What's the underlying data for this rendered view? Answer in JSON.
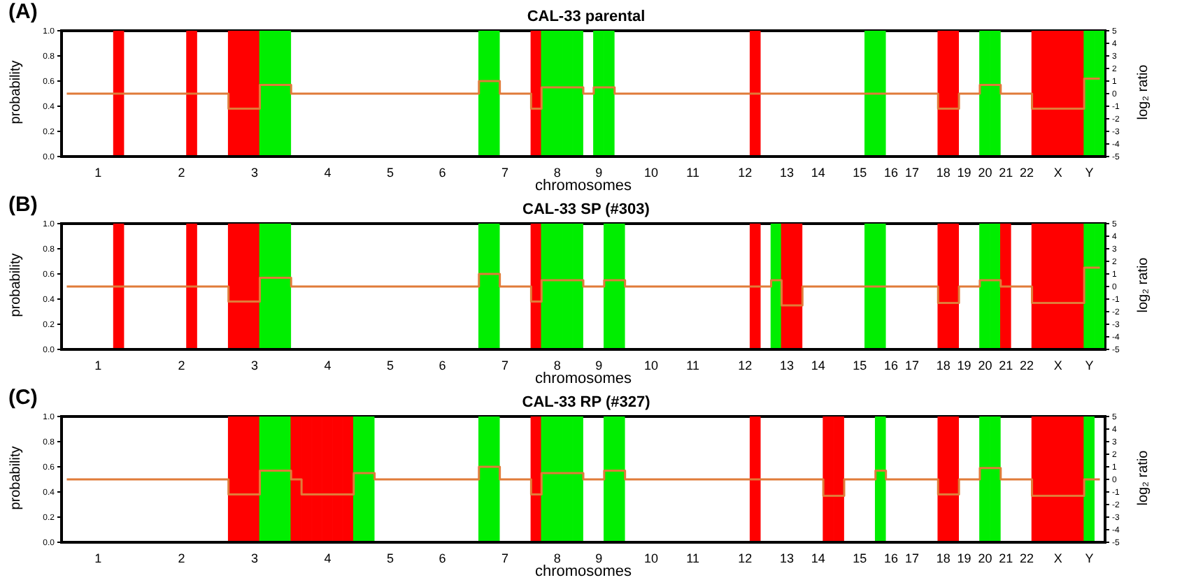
{
  "chart_data": [
    {
      "type": "bar",
      "title": "CAL-33 parental",
      "annotations": [
        "(A)"
      ],
      "xlabel": "chromosomes",
      "ylabel": "probability",
      "y2label": "log₂ ratio",
      "marker": "none",
      "grid": false,
      "categories": [
        null,
        null,
        null,
        "1",
        null,
        null,
        null,
        null,
        null,
        null,
        null,
        "2",
        null,
        null,
        null,
        null,
        null,
        null,
        "3",
        null,
        null,
        null,
        null,
        null,
        null,
        "4",
        null,
        null,
        null,
        null,
        null,
        "5",
        null,
        null,
        null,
        null,
        "6",
        null,
        null,
        null,
        null,
        null,
        "7",
        null,
        null,
        null,
        null,
        "8",
        null,
        null,
        null,
        "9",
        null,
        null,
        null,
        null,
        "10",
        null,
        null,
        null,
        "11",
        null,
        null,
        null,
        null,
        "12",
        null,
        null,
        null,
        "13",
        null,
        null,
        "14",
        null,
        null,
        null,
        "15",
        null,
        null,
        "16",
        null,
        "17",
        null,
        null,
        "18",
        null,
        "19",
        null,
        "20",
        null,
        "21",
        null,
        "22",
        null,
        null,
        "X",
        null,
        null,
        "Y",
        null
      ],
      "ylim": [
        0,
        1
      ],
      "yticks": [
        {
          "value": 0,
          "label": "0.0"
        },
        {
          "value": 0.2,
          "label": "0.2"
        },
        {
          "value": 0.4,
          "label": "0.4"
        },
        {
          "value": 0.6,
          "label": "0.6"
        },
        {
          "value": 0.8,
          "label": "0.8"
        },
        {
          "value": 1,
          "label": "1.0"
        }
      ],
      "y2lim": [
        -5,
        5
      ],
      "y2ticks": [
        -5,
        -4,
        -3,
        -2,
        -1,
        0,
        1,
        2,
        3,
        4,
        5
      ],
      "series": [
        {
          "values": [
            null,
            null,
            null,
            null,
            null,
            1,
            null,
            null,
            null,
            null,
            null,
            null,
            1,
            null,
            null,
            null,
            1,
            1,
            1,
            1,
            1,
            1,
            null,
            null,
            null,
            null,
            null,
            null,
            null,
            null,
            null,
            null,
            null,
            null,
            null,
            null,
            null,
            null,
            null,
            null,
            1,
            1,
            null,
            null,
            null,
            1,
            1,
            1,
            1,
            1,
            null,
            1,
            1,
            null,
            null,
            null,
            null,
            null,
            null,
            null,
            null,
            null,
            null,
            null,
            null,
            null,
            1,
            null,
            null,
            null,
            null,
            null,
            null,
            null,
            null,
            null,
            null,
            1,
            1,
            null,
            null,
            null,
            null,
            null,
            1,
            1,
            null,
            null,
            1,
            1,
            null,
            null,
            null,
            1,
            1,
            1,
            1,
            1,
            1,
            1
          ],
          "colors": [
            null,
            null,
            null,
            null,
            null,
            "#ff0000",
            null,
            null,
            null,
            null,
            null,
            null,
            "#ff0000",
            null,
            null,
            null,
            "#ff0000",
            "#ff0000",
            "#ff0000",
            "#00ee00",
            "#00ee00",
            "#00ee00",
            null,
            null,
            null,
            null,
            null,
            null,
            null,
            null,
            null,
            null,
            null,
            null,
            null,
            null,
            null,
            null,
            null,
            null,
            "#00ee00",
            "#00ee00",
            null,
            null,
            null,
            "#ff0000",
            "#00ee00",
            "#00ee00",
            "#00ee00",
            "#00ee00",
            null,
            "#00ee00",
            "#00ee00",
            null,
            null,
            null,
            null,
            null,
            null,
            null,
            null,
            null,
            null,
            null,
            null,
            null,
            "#ff0000",
            null,
            null,
            null,
            null,
            null,
            null,
            null,
            null,
            null,
            null,
            "#00ee00",
            "#00ee00",
            null,
            null,
            null,
            null,
            null,
            "#ff0000",
            "#ff0000",
            null,
            null,
            "#00ee00",
            "#00ee00",
            null,
            null,
            null,
            "#ff0000",
            "#ff0000",
            "#ff0000",
            "#ff0000",
            "#ff0000",
            "#00ee00",
            "#00ee00"
          ]
        },
        {
          "type": "step",
          "color": "#e07b39",
          "axis": "y2",
          "values": [
            0,
            0,
            0,
            0,
            0,
            0,
            0,
            0,
            0,
            0,
            0,
            0,
            0,
            0,
            0,
            0,
            -1.2,
            -1.2,
            -1.2,
            0.7,
            0.7,
            0.7,
            0,
            0,
            0,
            0,
            0,
            0,
            0,
            0,
            0,
            0,
            0,
            0,
            0,
            0,
            0,
            0,
            0,
            0,
            1,
            1,
            0,
            0,
            0,
            -1.2,
            0.5,
            0.5,
            0.5,
            0.5,
            0,
            0.5,
            0.5,
            0,
            0,
            0,
            0,
            0,
            0,
            0,
            0,
            0,
            0,
            0,
            0,
            0,
            0,
            0,
            0,
            0,
            0,
            0,
            0,
            0,
            0,
            0,
            0,
            0,
            0,
            0,
            0,
            0,
            0,
            0,
            -1.2,
            -1.2,
            0,
            0,
            0.7,
            0.7,
            0,
            0,
            0,
            -1.2,
            -1.2,
            -1.2,
            -1.2,
            -1.2,
            1.2,
            1.2
          ]
        }
      ]
    },
    {
      "type": "bar",
      "title": "CAL-33 SP (#303)",
      "annotations": [
        "(B)"
      ],
      "xlabel": "chromosomes",
      "ylabel": "probability",
      "y2label": "log₂ ratio",
      "marker": "none",
      "grid": false,
      "categories": [
        null,
        null,
        null,
        "1",
        null,
        null,
        null,
        null,
        null,
        null,
        null,
        "2",
        null,
        null,
        null,
        null,
        null,
        null,
        "3",
        null,
        null,
        null,
        null,
        null,
        null,
        "4",
        null,
        null,
        null,
        null,
        null,
        "5",
        null,
        null,
        null,
        null,
        "6",
        null,
        null,
        null,
        null,
        null,
        "7",
        null,
        null,
        null,
        null,
        "8",
        null,
        null,
        null,
        "9",
        null,
        null,
        null,
        null,
        "10",
        null,
        null,
        null,
        "11",
        null,
        null,
        null,
        null,
        "12",
        null,
        null,
        null,
        "13",
        null,
        null,
        "14",
        null,
        null,
        null,
        "15",
        null,
        null,
        "16",
        null,
        "17",
        null,
        null,
        "18",
        null,
        "19",
        null,
        "20",
        null,
        "21",
        null,
        "22",
        null,
        null,
        "X",
        null,
        null,
        "Y",
        null
      ],
      "ylim": [
        0,
        1
      ],
      "yticks": [
        {
          "value": 0,
          "label": "0.0"
        },
        {
          "value": 0.2,
          "label": "0.2"
        },
        {
          "value": 0.4,
          "label": "0.4"
        },
        {
          "value": 0.6,
          "label": "0.6"
        },
        {
          "value": 0.8,
          "label": "0.8"
        },
        {
          "value": 1,
          "label": "1.0"
        }
      ],
      "y2lim": [
        -5,
        5
      ],
      "y2ticks": [
        -5,
        -4,
        -3,
        -2,
        -1,
        0,
        1,
        2,
        3,
        4,
        5
      ],
      "series": [
        {
          "values": [
            null,
            null,
            null,
            null,
            null,
            1,
            null,
            null,
            null,
            null,
            null,
            null,
            1,
            null,
            null,
            null,
            1,
            1,
            1,
            1,
            1,
            1,
            null,
            null,
            null,
            null,
            null,
            null,
            null,
            null,
            null,
            null,
            null,
            null,
            null,
            null,
            null,
            null,
            null,
            null,
            1,
            1,
            null,
            null,
            null,
            1,
            1,
            1,
            1,
            1,
            null,
            null,
            1,
            1,
            null,
            null,
            null,
            null,
            null,
            null,
            null,
            null,
            null,
            null,
            null,
            null,
            1,
            null,
            1,
            1,
            1,
            null,
            null,
            null,
            null,
            null,
            null,
            1,
            1,
            null,
            null,
            null,
            null,
            null,
            1,
            1,
            null,
            null,
            1,
            1,
            1,
            null,
            null,
            1,
            1,
            1,
            1,
            1,
            1,
            1
          ],
          "colors": [
            null,
            null,
            null,
            null,
            null,
            "#ff0000",
            null,
            null,
            null,
            null,
            null,
            null,
            "#ff0000",
            null,
            null,
            null,
            "#ff0000",
            "#ff0000",
            "#ff0000",
            "#00ee00",
            "#00ee00",
            "#00ee00",
            null,
            null,
            null,
            null,
            null,
            null,
            null,
            null,
            null,
            null,
            null,
            null,
            null,
            null,
            null,
            null,
            null,
            null,
            "#00ee00",
            "#00ee00",
            null,
            null,
            null,
            "#ff0000",
            "#00ee00",
            "#00ee00",
            "#00ee00",
            "#00ee00",
            null,
            null,
            "#00ee00",
            "#00ee00",
            null,
            null,
            null,
            null,
            null,
            null,
            null,
            null,
            null,
            null,
            null,
            null,
            "#ff0000",
            null,
            "#00ee00",
            "#ff0000",
            "#ff0000",
            null,
            null,
            null,
            null,
            null,
            null,
            "#00ee00",
            "#00ee00",
            null,
            null,
            null,
            null,
            null,
            "#ff0000",
            "#ff0000",
            null,
            null,
            "#00ee00",
            "#00ee00",
            "#ff0000",
            null,
            null,
            "#ff0000",
            "#ff0000",
            "#ff0000",
            "#ff0000",
            "#ff0000",
            "#00ee00",
            "#00ee00"
          ]
        },
        {
          "type": "step",
          "color": "#e07b39",
          "axis": "y2",
          "values": [
            0,
            0,
            0,
            0,
            0,
            0,
            0,
            0,
            0,
            0,
            0,
            0,
            0,
            0,
            0,
            0,
            -1.2,
            -1.2,
            -1.2,
            0.7,
            0.7,
            0.7,
            0,
            0,
            0,
            0,
            0,
            0,
            0,
            0,
            0,
            0,
            0,
            0,
            0,
            0,
            0,
            0,
            0,
            0,
            1,
            1,
            0,
            0,
            0,
            -1.2,
            0.5,
            0.5,
            0.5,
            0.5,
            0,
            0,
            0.5,
            0.5,
            0,
            0,
            0,
            0,
            0,
            0,
            0,
            0,
            0,
            0,
            0,
            0,
            0,
            0,
            0.5,
            -1.5,
            -1.5,
            0,
            0,
            0,
            0,
            0,
            0,
            0,
            0,
            0,
            0,
            0,
            0,
            0,
            -1.3,
            -1.3,
            0,
            0,
            0.5,
            0.5,
            0,
            0,
            0,
            -1.3,
            -1.3,
            -1.3,
            -1.3,
            -1.3,
            1.5,
            1.5
          ]
        }
      ]
    },
    {
      "type": "bar",
      "title": "CAL-33 RP (#327)",
      "annotations": [
        "(C)"
      ],
      "xlabel": "chromosomes",
      "ylabel": "probability",
      "y2label": "log₂ ratio",
      "marker": "none",
      "grid": false,
      "categories": [
        null,
        null,
        null,
        "1",
        null,
        null,
        null,
        null,
        null,
        null,
        null,
        "2",
        null,
        null,
        null,
        null,
        null,
        null,
        "3",
        null,
        null,
        null,
        null,
        null,
        null,
        "4",
        null,
        null,
        null,
        null,
        null,
        "5",
        null,
        null,
        null,
        null,
        "6",
        null,
        null,
        null,
        null,
        null,
        "7",
        null,
        null,
        null,
        null,
        "8",
        null,
        null,
        null,
        "9",
        null,
        null,
        null,
        null,
        "10",
        null,
        null,
        null,
        "11",
        null,
        null,
        null,
        null,
        "12",
        null,
        null,
        null,
        "13",
        null,
        null,
        "14",
        null,
        null,
        null,
        "15",
        null,
        null,
        "16",
        null,
        "17",
        null,
        null,
        "18",
        null,
        "19",
        null,
        "20",
        null,
        "21",
        null,
        "22",
        null,
        null,
        "X",
        null,
        null,
        "Y",
        null
      ],
      "ylim": [
        0,
        1
      ],
      "yticks": [
        {
          "value": 0,
          "label": "0.0"
        },
        {
          "value": 0.2,
          "label": "0.2"
        },
        {
          "value": 0.4,
          "label": "0.4"
        },
        {
          "value": 0.6,
          "label": "0.6"
        },
        {
          "value": 0.8,
          "label": "0.8"
        },
        {
          "value": 1,
          "label": "1.0"
        }
      ],
      "y2lim": [
        -5,
        5
      ],
      "y2ticks": [
        -5,
        -4,
        -3,
        -2,
        -1,
        0,
        1,
        2,
        3,
        4,
        5
      ],
      "series": [
        {
          "values": [
            null,
            null,
            null,
            null,
            null,
            null,
            null,
            null,
            null,
            null,
            null,
            null,
            null,
            null,
            null,
            null,
            1,
            1,
            1,
            1,
            1,
            1,
            1,
            1,
            1,
            1,
            1,
            1,
            1,
            1,
            null,
            null,
            null,
            null,
            null,
            null,
            null,
            null,
            null,
            null,
            1,
            1,
            null,
            null,
            null,
            1,
            1,
            1,
            1,
            1,
            null,
            null,
            1,
            1,
            null,
            null,
            null,
            null,
            null,
            null,
            null,
            null,
            null,
            null,
            null,
            null,
            1,
            null,
            null,
            null,
            null,
            null,
            null,
            1,
            1,
            null,
            null,
            null,
            1,
            null,
            null,
            null,
            null,
            null,
            1,
            1,
            null,
            null,
            1,
            1,
            null,
            null,
            null,
            1,
            1,
            1,
            1,
            1,
            1,
            null
          ],
          "colors": [
            null,
            null,
            null,
            null,
            null,
            null,
            null,
            null,
            null,
            null,
            null,
            null,
            null,
            null,
            null,
            null,
            "#ff0000",
            "#ff0000",
            "#ff0000",
            "#00ee00",
            "#00ee00",
            "#00ee00",
            "#ff0000",
            "#ff0000",
            "#ff0000",
            "#ff0000",
            "#ff0000",
            "#ff0000",
            "#00ee00",
            "#00ee00",
            null,
            null,
            null,
            null,
            null,
            null,
            null,
            null,
            null,
            null,
            "#00ee00",
            "#00ee00",
            null,
            null,
            null,
            "#ff0000",
            "#00ee00",
            "#00ee00",
            "#00ee00",
            "#00ee00",
            null,
            null,
            "#00ee00",
            "#00ee00",
            null,
            null,
            null,
            null,
            null,
            null,
            null,
            null,
            null,
            null,
            null,
            null,
            "#ff0000",
            null,
            null,
            null,
            null,
            null,
            null,
            "#ff0000",
            "#ff0000",
            null,
            null,
            null,
            "#00ee00",
            null,
            null,
            null,
            null,
            null,
            "#ff0000",
            "#ff0000",
            null,
            null,
            "#00ee00",
            "#00ee00",
            null,
            null,
            null,
            "#ff0000",
            "#ff0000",
            "#ff0000",
            "#ff0000",
            "#ff0000",
            "#00ee00",
            null
          ]
        },
        {
          "type": "step",
          "color": "#e07b39",
          "axis": "y2",
          "values": [
            0,
            0,
            0,
            0,
            0,
            0,
            0,
            0,
            0,
            0,
            0,
            0,
            0,
            0,
            0,
            0,
            -1.2,
            -1.2,
            -1.2,
            0.7,
            0.7,
            0.7,
            0,
            -1.2,
            -1.2,
            -1.2,
            -1.2,
            -1.2,
            0.5,
            0.5,
            0,
            0,
            0,
            0,
            0,
            0,
            0,
            0,
            0,
            0,
            1,
            1,
            0,
            0,
            0,
            -1.2,
            0.5,
            0.5,
            0.5,
            0.5,
            0,
            0,
            0.7,
            0.7,
            0,
            0,
            0,
            0,
            0,
            0,
            0,
            0,
            0,
            0,
            0,
            0,
            0,
            0,
            0,
            0,
            0,
            0,
            0,
            -1.3,
            -1.3,
            0,
            0,
            0,
            0.7,
            0,
            0,
            0,
            0,
            0,
            -1.2,
            -1.2,
            0,
            0,
            0.9,
            0.9,
            0,
            0,
            0,
            -1.3,
            -1.3,
            -1.3,
            -1.3,
            -1.3,
            0,
            0
          ]
        }
      ]
    }
  ]
}
